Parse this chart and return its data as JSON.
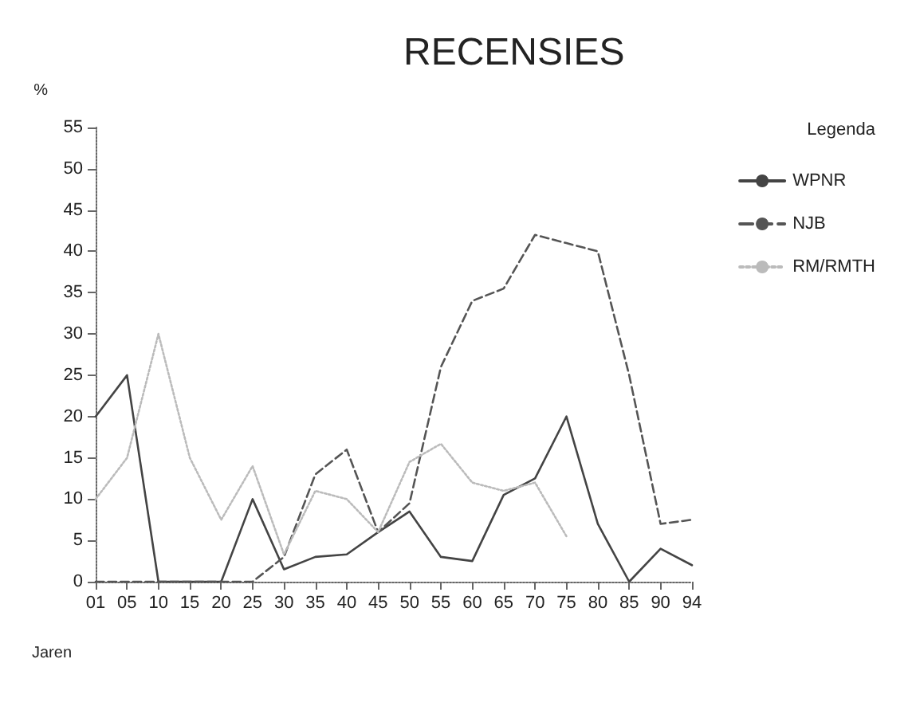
{
  "chart_data": {
    "type": "line",
    "title": "RECENSIES",
    "xlabel": "Jaren",
    "ylabel": "%",
    "legend_title": "Legenda",
    "categories": [
      "01",
      "05",
      "10",
      "15",
      "20",
      "25",
      "30",
      "35",
      "40",
      "45",
      "50",
      "55",
      "60",
      "65",
      "70",
      "75",
      "80",
      "85",
      "90",
      "94"
    ],
    "series": [
      {
        "name": "WPNR",
        "color": "#444444",
        "line_style": "solid",
        "values": [
          20,
          25,
          0,
          0,
          0,
          10,
          1.5,
          3,
          3.3,
          6,
          8.5,
          3,
          2.5,
          10.5,
          12.5,
          20,
          7,
          0,
          4,
          2
        ]
      },
      {
        "name": "NJB",
        "color": "#555555",
        "line_style": "dashed",
        "values": [
          0,
          0,
          0,
          0,
          0,
          0,
          3,
          13,
          16,
          6,
          9.5,
          26,
          34,
          35.5,
          42,
          41,
          40,
          25,
          7,
          7.5
        ]
      },
      {
        "name": "RM/RMTH",
        "color": "#bbbbbb",
        "line_style": "dotted",
        "values": [
          10,
          15,
          30,
          15,
          7.5,
          14,
          3.3,
          11,
          10,
          6,
          14.5,
          16.7,
          12,
          11,
          12,
          5.5,
          null,
          null,
          null,
          null
        ]
      }
    ],
    "ylim": [
      0,
      55
    ],
    "yticks": [
      0,
      5,
      10,
      15,
      20,
      25,
      30,
      35,
      40,
      45,
      50,
      55
    ],
    "grid": false,
    "legend": "right",
    "marker": "none"
  }
}
